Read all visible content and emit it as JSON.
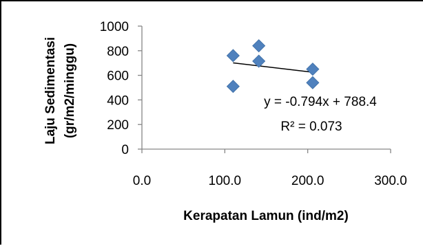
{
  "chart_data": {
    "type": "scatter",
    "xlabel": "Kerapatan Lamun (ind/m2)",
    "ylabel_lines": [
      "Laju Sedimentasi",
      "(gr/m2/minggu)"
    ],
    "xlim": [
      0,
      300
    ],
    "ylim": [
      0,
      1000
    ],
    "x_ticks": [
      0,
      100,
      200,
      300
    ],
    "x_tick_labels": [
      "0.0",
      "100.0",
      "200.0",
      "300.0"
    ],
    "y_ticks": [
      0,
      200,
      400,
      600,
      800,
      1000
    ],
    "y_tick_labels": [
      "0",
      "200",
      "400",
      "600",
      "800",
      "1000"
    ],
    "grid": false,
    "legend": "none",
    "marker": "diamond",
    "marker_color": "#4f81bd",
    "series": [
      {
        "points": [
          {
            "x": 110,
            "y": 760
          },
          {
            "x": 110,
            "y": 510
          },
          {
            "x": 141,
            "y": 840
          },
          {
            "x": 141,
            "y": 715
          },
          {
            "x": 206,
            "y": 650
          },
          {
            "x": 206,
            "y": 540
          }
        ]
      }
    ],
    "trendline": {
      "type": "linear",
      "slope": -0.794,
      "intercept": 788.4,
      "x_range": [
        110,
        206
      ],
      "equation_label": "y = -0.794x + 788.4",
      "r2_label": "R² = 0.073",
      "color": "#000000"
    }
  }
}
